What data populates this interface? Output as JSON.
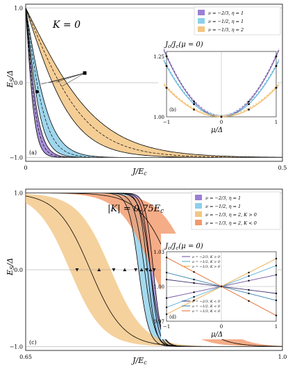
{
  "chart_data": [
    {
      "type": "area",
      "panel_label": "(a)",
      "title": "K = 0",
      "xlabel": "J/E_c",
      "ylabel": "E_S/Δ",
      "xlim": [
        0,
        0.5
      ],
      "ylim": [
        -1.05,
        1.05
      ],
      "x_ticks": [
        "0",
        "0.5"
      ],
      "y_ticks": [
        "1.0",
        "0.0",
        "−1.0"
      ],
      "legend_position": "top-right",
      "series": [
        {
          "name": "ν = −2/3,   η = 1",
          "color": "#9b7fd4",
          "center_width": 0.022,
          "band_half_width": 0.004,
          "x_ref": [
            0.0,
            0.02,
            0.04,
            0.06,
            0.1,
            0.2,
            0.5
          ],
          "y_ref": [
            1.0,
            0.62,
            0.05,
            -0.48,
            -0.86,
            -0.96,
            -0.98
          ]
        },
        {
          "name": "ν = −1/2,   η = 1",
          "color": "#8ecfea",
          "center_width": 0.04,
          "band_half_width": 0.009,
          "x_ref": [
            0.0,
            0.04,
            0.08,
            0.12,
            0.2,
            0.3,
            0.5
          ],
          "y_ref": [
            1.0,
            0.52,
            -0.25,
            -0.6,
            -0.85,
            -0.93,
            -0.97
          ]
        },
        {
          "name": "ν = −1/3,   η = 2",
          "color": "#f3c684",
          "center_width": 0.12,
          "band_half_width": 0.025,
          "x_ref": [
            0.0,
            0.1,
            0.2,
            0.3,
            0.4,
            0.5
          ],
          "y_ref": [
            1.0,
            0.1,
            -0.55,
            -0.8,
            -0.9,
            -0.95
          ]
        }
      ],
      "markers": [
        {
          "label": "▪",
          "x": 0.115,
          "y": 0.13
        },
        {
          "label": "•",
          "x": 0.022,
          "y": -0.12
        }
      ]
    },
    {
      "type": "line",
      "panel_label": "(b)",
      "title": "J_c/J_c(μ = 0)",
      "xlabel": "μ/Δ",
      "ylabel": "",
      "xlim": [
        -1,
        1
      ],
      "ylim": [
        1.0,
        1.27
      ],
      "x_ticks": [
        "−1",
        "0",
        "1"
      ],
      "y_ticks": [
        "1.25",
        "1.00"
      ],
      "series": [
        {
          "name": "ν = −2/3, η = 1",
          "color": "#6a4aa0",
          "end_value": 1.25
        },
        {
          "name": "ν = −1/2, η = 1",
          "color": "#4aa9d6",
          "end_value": 1.21
        },
        {
          "name": "ν = −1/3, η = 2",
          "color": "#f0a53a",
          "end_value": 1.12
        }
      ]
    },
    {
      "type": "area",
      "panel_label": "(c)",
      "title": "|K| = 0.75E_c",
      "xlabel": "J/E_c",
      "ylabel": "E_S/Δ",
      "xlim": [
        0.65,
        1.0
      ],
      "ylim": [
        -1.05,
        1.05
      ],
      "x_ticks": [
        "0.65",
        "1.0"
      ],
      "y_ticks": [
        "1.0",
        "0.0",
        "−1.0"
      ],
      "legend_position": "top-right",
      "series": [
        {
          "name": "ν = −2/3,   η = 1",
          "color": "#9b7fd4",
          "center_x": 0.82,
          "center_width": 0.011,
          "band_half_width": 0.004
        },
        {
          "name": "ν = −1/2,   η = 1",
          "color": "#8ecfea",
          "center_x": 0.812,
          "center_width": 0.014,
          "band_half_width": 0.008
        },
        {
          "name": "ν = −1/3,   η = 2,    K > 0",
          "color": "#f3c684",
          "center_x": 0.738,
          "center_width": 0.045,
          "band_half_width": 0.028
        },
        {
          "name": "ν = −1/3,   η = 2,    K < 0",
          "color": "#f3996a",
          "center_x": 0.85,
          "center_width": 0.045,
          "band_half_width": 0.028
        }
      ],
      "center_marks": [
        0.72,
        0.75,
        0.77,
        0.785,
        0.8,
        0.808,
        0.815,
        0.82,
        0.825,
        0.84,
        0.87,
        0.895
      ]
    },
    {
      "type": "line",
      "panel_label": "(d)",
      "title": "J_c/J_c(μ = 0)",
      "xlabel": "μ/Δ",
      "ylabel": "",
      "xlim": [
        -1,
        1
      ],
      "ylim": [
        0.97,
        1.03
      ],
      "x_ticks": [
        "−1",
        "0",
        "1"
      ],
      "y_ticks": [
        "1.03",
        "1.00",
        "0.97"
      ],
      "legend_top": [
        "ν = −2/3, K > 0",
        "ν = −1/2, K > 0",
        "ν = −1/3, K > 0"
      ],
      "legend_bottom": [
        "ν = −2/3, K < 0",
        "ν = −1/2, K < 0",
        "ν = −1/3, K < 0"
      ],
      "series": [
        {
          "name": "ν = −2/3, K > 0",
          "color": "#6a4aa0",
          "slope": 0.01
        },
        {
          "name": "ν = −1/2, K > 0",
          "color": "#4aa9d6",
          "slope": 0.018
        },
        {
          "name": "ν = −1/3, K > 0",
          "color": "#f0a53a",
          "slope": 0.024
        },
        {
          "name": "ν = −2/3, K < 0",
          "color": "#3a2a6a",
          "slope": -0.006
        },
        {
          "name": "ν = −1/2, K < 0",
          "color": "#2a7aa6",
          "slope": -0.012
        },
        {
          "name": "ν = −1/3, K < 0",
          "color": "#e0662a",
          "slope": -0.025
        }
      ]
    }
  ],
  "colors": {
    "purple": "#9b7fd4",
    "blue": "#8ecfea",
    "orange": "#f3c684",
    "red": "#f3996a"
  }
}
